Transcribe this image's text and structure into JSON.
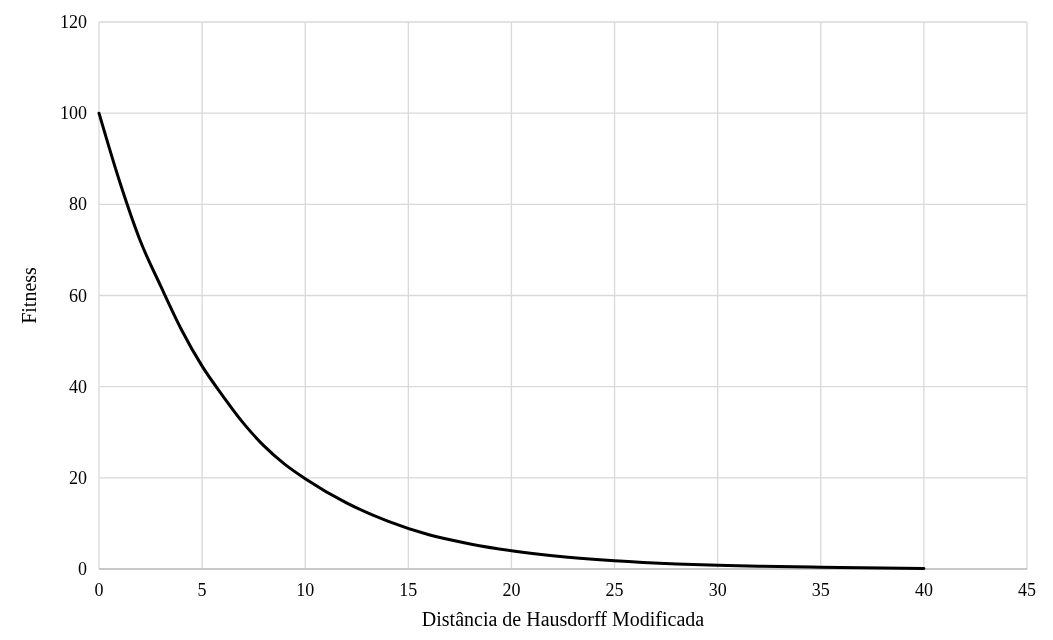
{
  "chart_data": {
    "type": "line",
    "xlabel": "Distância de Hausdorff Modificada",
    "ylabel": "Fitness",
    "x": [
      0,
      1,
      2,
      3,
      4,
      5,
      6,
      7,
      8,
      9,
      10,
      12,
      14,
      16,
      18,
      20,
      22,
      25,
      28,
      30,
      32,
      35,
      38,
      40
    ],
    "series": [
      {
        "color": "#000000",
        "values": [
          100,
          85,
          72,
          62,
          52.5,
          44.5,
          38,
          32,
          27,
          23,
          19.8,
          14.5,
          10.5,
          7.5,
          5.5,
          4,
          2.9,
          1.8,
          1.1,
          0.8,
          0.6,
          0.4,
          0.2,
          0.1
        ]
      }
    ],
    "xlim": [
      0,
      45
    ],
    "xticks": [
      0,
      5,
      10,
      15,
      20,
      25,
      30,
      35,
      40,
      45
    ],
    "ylim": [
      0,
      120
    ],
    "yticks": [
      0,
      20,
      40,
      60,
      80,
      100,
      120
    ],
    "grid": true,
    "line_style": "solid",
    "marker": "none"
  }
}
